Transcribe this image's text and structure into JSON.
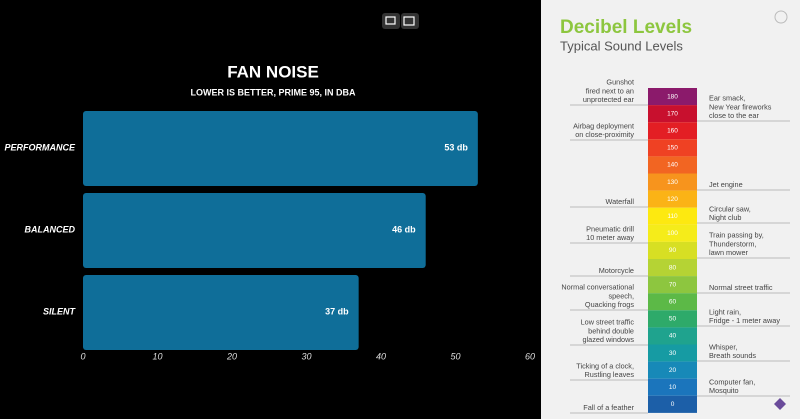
{
  "chart_data": {
    "type": "hbar",
    "title": "FAN NOISE",
    "subtitle": "LOWER IS BETTER,  PRIME 95, IN DBA",
    "categories": [
      "PERFORMANCE",
      "BALANCED",
      "SILENT"
    ],
    "values": [
      53,
      46,
      37
    ],
    "value_labels": [
      "53 db",
      "46 db",
      "37 db"
    ],
    "color": "#0f6e99",
    "xlim": [
      0,
      60
    ],
    "xticks": [
      0,
      10,
      20,
      30,
      40,
      50,
      60
    ]
  },
  "infographic": {
    "title": "Decibel Levels",
    "subtitle": "Typical Sound Levels",
    "levels": [
      180,
      170,
      160,
      150,
      140,
      130,
      120,
      110,
      100,
      90,
      80,
      70,
      60,
      50,
      40,
      30,
      20,
      10,
      0
    ],
    "colors": [
      "#8b1a6b",
      "#c8102e",
      "#e31e24",
      "#ef4123",
      "#f26522",
      "#f7941d",
      "#fbb316",
      "#fde910",
      "#f5ec1a",
      "#d7df23",
      "#b5d334",
      "#8dc63f",
      "#5cb947",
      "#2eaa6a",
      "#1fa38e",
      "#169ba3",
      "#1789b8",
      "#1b75bc",
      "#1c5fa8"
    ],
    "left_notes": [
      [
        "Gunshot",
        "fired next to an",
        "unprotected ear"
      ],
      [
        "Airbag deployment",
        "on close-proximity"
      ],
      [
        "Waterfall"
      ],
      [
        "Pneumatic drill",
        "10 meter away"
      ],
      [
        "Motorcycle"
      ],
      [
        "Normal conversational",
        "speech,",
        "Quacking frogs"
      ],
      [
        "Low street traffic",
        "behind double",
        "glazed windows"
      ],
      [
        "Ticking of a clock,",
        "Rustling leaves"
      ],
      [
        "Fall of a feather"
      ]
    ],
    "right_notes": [
      [
        "Ear smack,",
        "New Year fireworks",
        "close to the ear"
      ],
      [
        "Jet engine"
      ],
      [
        "Circular saw,",
        "Night club"
      ],
      [
        "Train passing by,",
        "Thunderstorm,",
        "lawn mower"
      ],
      [
        "Normal street traffic"
      ],
      [
        "Light rain,",
        "Fridge - 1 meter away"
      ],
      [
        "Whisper,",
        "Breath sounds"
      ],
      [
        "Computer fan,",
        "Mosquito"
      ]
    ]
  }
}
